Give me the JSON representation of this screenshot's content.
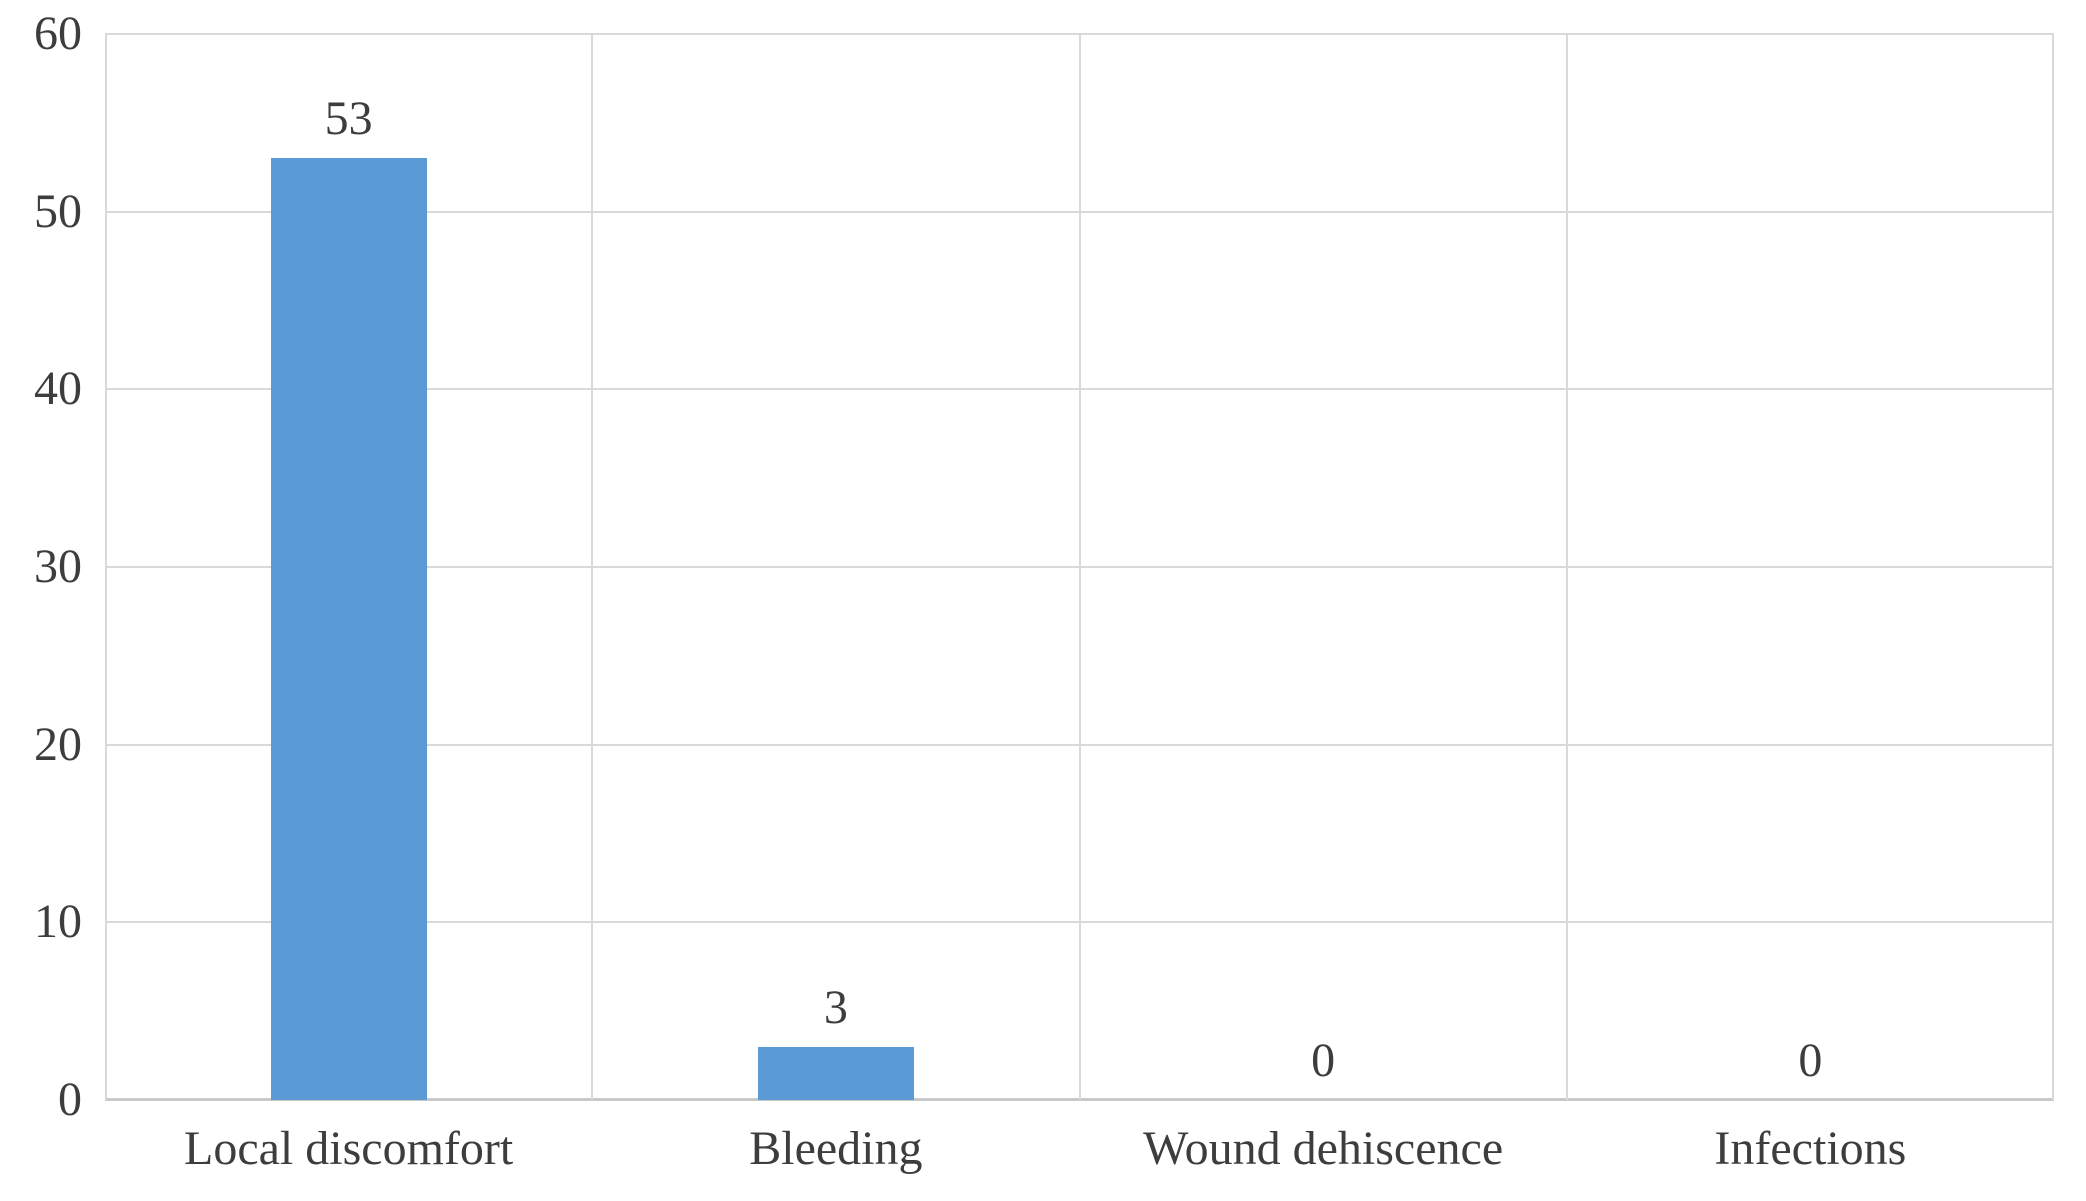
{
  "chart_data": {
    "type": "bar",
    "categories": [
      "Local discomfort",
      "Bleeding",
      "Wound dehiscence",
      "Infections"
    ],
    "values": [
      53,
      3,
      0,
      0
    ],
    "value_labels": [
      "53",
      "3",
      "0",
      "0"
    ],
    "title": "",
    "xlabel": "",
    "ylabel": "",
    "ylim": [
      0,
      60
    ],
    "yticks": [
      0,
      10,
      20,
      30,
      40,
      50,
      60
    ],
    "grid": true,
    "legend": false,
    "colors": {
      "bar": "#5B9BD5",
      "gridline": "#D9D9D9",
      "axis_line": "#C9C9C9",
      "text": "#3D3D3D",
      "background": "#FFFFFF"
    }
  }
}
